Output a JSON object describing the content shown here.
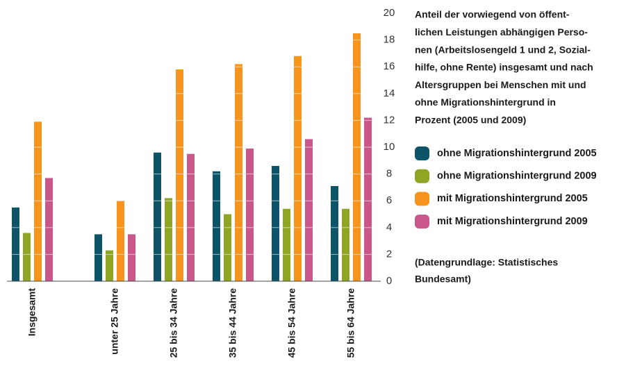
{
  "chart_data": {
    "type": "bar",
    "title": [
      "Anteil der vorwiegend von öffent-",
      "lichen Leistungen abhängigen Perso-",
      "nen (Arbeitslosengeld 1 und 2, Sozial-",
      "hilfe, ohne Rente) insgesamt und nach",
      "Altersgruppen bei Menschen mit und",
      "ohne Migrationshintergrund in",
      "Prozent (2005 und 2009)"
    ],
    "note": [
      "(Datengrundlage: Statistisches",
      "Bundesamt)"
    ],
    "categories": [
      "Insgesamt",
      "unter 25 Jahre",
      "25 bis 34 Jahre",
      "35 bis 44  Jahre",
      "45 bis 54 Jahre",
      "55 bis 64 Jahre"
    ],
    "series": [
      {
        "name": "ohne Migrationshintergrund 2005",
        "color": "#0e5468",
        "values": [
          5.5,
          3.5,
          9.6,
          8.2,
          8.6,
          7.1
        ]
      },
      {
        "name": "ohne Migrationshintergrund 2009",
        "color": "#8ea623",
        "values": [
          3.6,
          2.3,
          6.2,
          5.0,
          5.4,
          5.4
        ]
      },
      {
        "name": "mit Migrationshintergrund 2005",
        "color": "#f7941d",
        "values": [
          11.9,
          6.0,
          15.8,
          16.2,
          16.8,
          18.5
        ]
      },
      {
        "name": "mit Migrationshintergrund 2009",
        "color": "#c9578a",
        "values": [
          7.7,
          3.5,
          9.5,
          9.9,
          10.6,
          12.2
        ]
      }
    ],
    "ylim": [
      0,
      20
    ],
    "yticks": [
      0,
      2,
      4,
      6,
      8,
      10,
      12,
      14,
      16,
      18,
      20
    ],
    "grid": true
  }
}
